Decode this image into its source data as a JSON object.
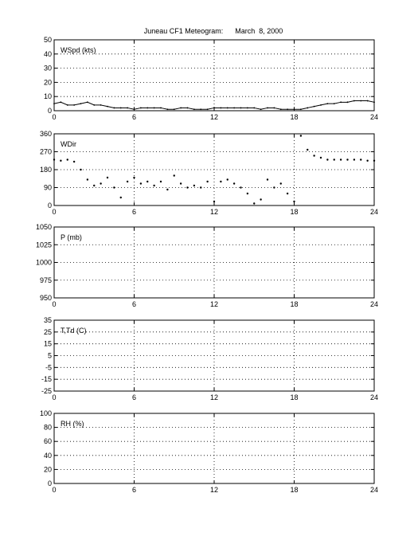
{
  "title": "Juneau CF1 Meteogram:      March  8, 2000",
  "chart_data": [
    {
      "type": "line",
      "panel_label": "WSpd (kts)",
      "xlim": [
        0,
        24
      ],
      "xticks": [
        "0",
        "6",
        "12",
        "18",
        "24"
      ],
      "ylim": [
        0,
        50
      ],
      "yticks": [
        "50",
        "40",
        "30",
        "20",
        "10",
        "0"
      ],
      "grid": true,
      "series": [
        {
          "x": [
            0,
            0.5,
            1,
            1.5,
            2,
            2.5,
            3,
            3.5,
            4,
            4.5,
            5,
            5.5,
            6,
            6.5,
            7,
            7.5,
            8,
            8.5,
            9,
            9.5,
            10,
            10.5,
            11,
            11.5,
            12,
            12.5,
            13,
            13.5,
            14,
            14.5,
            15,
            15.5,
            16,
            16.5,
            17,
            17.5,
            18,
            18.5,
            19,
            19.5,
            20,
            20.5,
            21,
            21.5,
            22,
            22.5,
            23,
            23.5,
            24
          ],
          "values": [
            5,
            6,
            4,
            4,
            5,
            6,
            4,
            4,
            3,
            2,
            2,
            2,
            1,
            2,
            2,
            2,
            2,
            1,
            1,
            2,
            2,
            1,
            1,
            1,
            2,
            2,
            2,
            2,
            2,
            2,
            2,
            1,
            2,
            2,
            1,
            1,
            1,
            1,
            2,
            3,
            4,
            5,
            5,
            6,
            6,
            7,
            7,
            7,
            6
          ]
        }
      ]
    },
    {
      "type": "scatter",
      "panel_label": "WDir",
      "xlim": [
        0,
        24
      ],
      "xticks": [
        "0",
        "6",
        "12",
        "18",
        "24"
      ],
      "ylim": [
        0,
        360
      ],
      "yticks": [
        "360",
        "270",
        "180",
        "90",
        "0"
      ],
      "grid": true,
      "series": [
        {
          "x": [
            0,
            0.5,
            1,
            1.5,
            2,
            2.5,
            3,
            3.5,
            4,
            4.5,
            5,
            5.5,
            6,
            6.5,
            7,
            7.5,
            8,
            8.5,
            9,
            9.5,
            10,
            10.5,
            11,
            11.5,
            12,
            12.5,
            13,
            13.5,
            14,
            14.5,
            15,
            15.5,
            16,
            16.5,
            17,
            17.5,
            18,
            18.5,
            19,
            19.5,
            20,
            20.5,
            21,
            21.5,
            22,
            22.5,
            23,
            23.5,
            24
          ],
          "values": [
            230,
            225,
            230,
            220,
            180,
            130,
            100,
            110,
            140,
            90,
            40,
            120,
            140,
            110,
            120,
            100,
            120,
            80,
            150,
            110,
            90,
            100,
            90,
            120,
            20,
            120,
            130,
            110,
            90,
            60,
            10,
            30,
            130,
            90,
            110,
            60,
            20,
            350,
            280,
            250,
            240,
            230,
            230,
            230,
            230,
            230,
            230,
            225,
            225
          ]
        }
      ]
    },
    {
      "type": "line",
      "panel_label": "P (mb)",
      "xlim": [
        0,
        24
      ],
      "xticks": [
        "0",
        "6",
        "12",
        "18",
        "24"
      ],
      "ylim": [
        950,
        1050
      ],
      "yticks": [
        "1050",
        "1025",
        "1000",
        "975",
        "950"
      ],
      "grid": true,
      "series": []
    },
    {
      "type": "line",
      "panel_label": "T,Td (C)",
      "xlim": [
        0,
        24
      ],
      "xticks": [
        "0",
        "6",
        "12",
        "18",
        "24"
      ],
      "ylim": [
        -25,
        35
      ],
      "yticks": [
        "35",
        "25",
        "15",
        "5",
        "-5",
        "-15",
        "-25"
      ],
      "grid": true,
      "series": []
    },
    {
      "type": "line",
      "panel_label": "RH (%)",
      "xlim": [
        0,
        24
      ],
      "xticks": [
        "0",
        "6",
        "12",
        "18",
        "24"
      ],
      "ylim": [
        0,
        100
      ],
      "yticks": [
        "100",
        "80",
        "60",
        "40",
        "20",
        "0"
      ],
      "grid": true,
      "series": []
    }
  ]
}
